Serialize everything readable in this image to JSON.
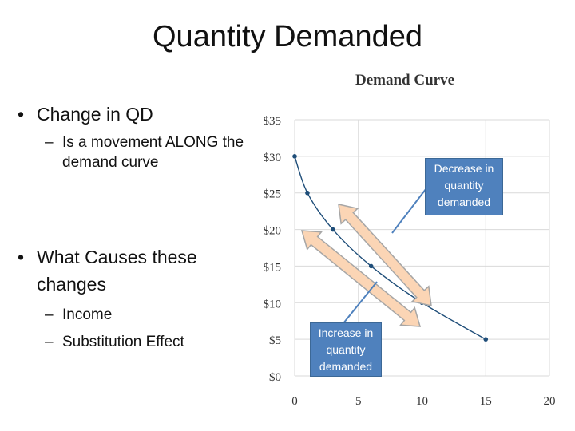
{
  "slide": {
    "title": "Quantity Demanded",
    "bullet1": "Change in QD",
    "bullet1_sub": "Is a movement ALONG the demand curve",
    "bullet2": "What Causes these changes",
    "bullet2_subs": [
      "Income",
      "Substitution Effect"
    ],
    "bullet_char": "•",
    "dash_char": "–"
  },
  "chart_data": {
    "type": "line",
    "title": "Demand Curve",
    "xlabel": "",
    "ylabel": "",
    "xlim": [
      0,
      20
    ],
    "ylim": [
      0,
      35
    ],
    "xticks": [
      0,
      5,
      10,
      15,
      20
    ],
    "yticks": [
      0,
      5,
      10,
      15,
      20,
      25,
      30,
      35
    ],
    "ytick_labels": [
      "$0",
      "$5",
      "$10",
      "$15",
      "$20",
      "$25",
      "$30",
      "$35"
    ],
    "grid": true,
    "series": [
      {
        "x": [
          0,
          1,
          3,
          6,
          10,
          15
        ],
        "values": [
          30,
          25,
          20,
          15,
          10,
          5
        ],
        "color": "#1f4e79"
      }
    ],
    "annotations": [
      {
        "text": "Decrease in quantity demanded",
        "color": "#4f81bd"
      },
      {
        "text": "Increase in quantity demanded",
        "color": "#4f81bd"
      }
    ],
    "arrow_fill": "#fbd5b5",
    "arrow_stroke": "#a6a6a6"
  }
}
